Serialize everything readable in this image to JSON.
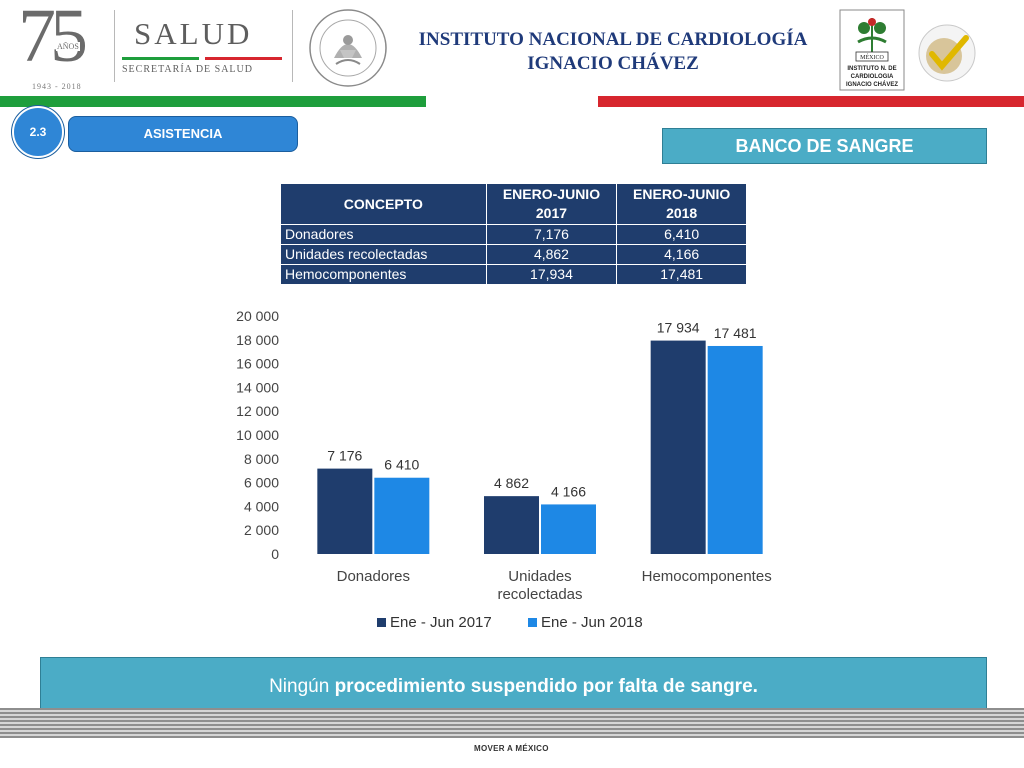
{
  "header": {
    "logo75": {
      "number": "75",
      "anos": "AÑOS",
      "years": "1943 - 2018"
    },
    "salud": {
      "word": "SALUD",
      "sub": "SECRETARÍA DE SALUD"
    },
    "institute_line1": "INSTITUTO NACIONAL DE CARDIOLOGÍA",
    "institute_line2": "IGNACIO CHÁVEZ",
    "inst_logo": {
      "line1": "MÉXICO",
      "line2": "INSTITUTO N. DE",
      "line3": "CARDIOLOGIA",
      "line4": "IGNACIO CHÁVEZ"
    }
  },
  "section": {
    "number": "2.3",
    "label": "ASISTENCIA",
    "banner": "BANCO DE SANGRE"
  },
  "table": {
    "headers": [
      "CONCEPTO",
      "ENERO-JUNIO 2017",
      "ENERO-JUNIO 2018"
    ],
    "rows": [
      [
        "Donadores",
        "7,176",
        "6,410"
      ],
      [
        "Unidades recolectadas",
        "4,862",
        "4,166"
      ],
      [
        "Hemocomponentes",
        "17,934",
        "17,481"
      ]
    ]
  },
  "chart_data": {
    "type": "bar",
    "title": "",
    "xlabel": "",
    "ylabel": "",
    "categories": [
      [
        "Donadores"
      ],
      [
        "Unidades",
        "recolectadas"
      ],
      [
        "Hemocomponentes"
      ]
    ],
    "series": [
      {
        "name": "Ene - Jun 2017",
        "values": [
          7176,
          4862,
          17934
        ],
        "labels": [
          "7 176",
          "4 862",
          "17 934"
        ],
        "color": "#1f3d6d"
      },
      {
        "name": "Ene - Jun 2018",
        "values": [
          6410,
          4166,
          17481
        ],
        "labels": [
          "6 410",
          "4 166",
          "17 481"
        ],
        "color": "#1e88e5"
      }
    ],
    "ylim": [
      0,
      20000
    ],
    "yticks": [
      0,
      2000,
      4000,
      6000,
      8000,
      10000,
      12000,
      14000,
      16000,
      18000,
      20000
    ],
    "ytick_labels": [
      "0",
      "2 000",
      "4 000",
      "6 000",
      "8 000",
      "10 000",
      "12 000",
      "14 000",
      "16 000",
      "18 000",
      "20 000"
    ],
    "grid": false,
    "legend": "bottom"
  },
  "footer": {
    "note_lead": "Ningún ",
    "note_bold": "procedimiento suspendido por falta de sangre.",
    "mover": "MOVER A MÉXICO"
  },
  "colors": {
    "green": "#1e9e3c",
    "red": "#d7262e",
    "navy": "#1f3d6d",
    "blue": "#1e88e5",
    "teal": "#4bacc6"
  }
}
